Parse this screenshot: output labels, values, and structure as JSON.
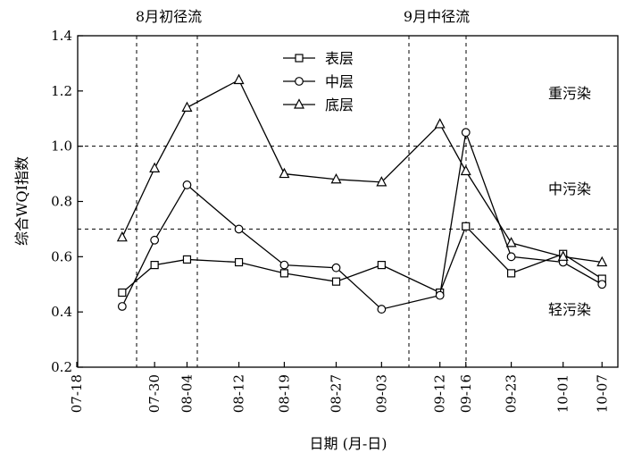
{
  "chart_data": {
    "type": "line",
    "xlabel": "日期 (月-日)",
    "ylabel": "综合WQI指数",
    "ylim": [
      0.2,
      1.4
    ],
    "yticks": [
      "0.2",
      "0.4",
      "0.6",
      "0.8",
      "1.0",
      "1.2",
      "1.4"
    ],
    "categories": [
      "07-18",
      "07-30",
      "08-04",
      "08-12",
      "08-19",
      "08-27",
      "09-03",
      "09-12",
      "09-16",
      "09-23",
      "10-01",
      "10-07"
    ],
    "points_x": [
      "07-25",
      "07-30",
      "08-04",
      "08-12",
      "08-19",
      "08-27",
      "09-03",
      "09-12",
      "09-16",
      "09-23",
      "10-01",
      "10-07"
    ],
    "series": [
      {
        "name": "表层",
        "marker": "square",
        "values": [
          0.47,
          0.57,
          0.59,
          0.58,
          0.54,
          0.51,
          0.57,
          0.47,
          0.71,
          0.54,
          0.61,
          0.52
        ]
      },
      {
        "name": "中层",
        "marker": "circle",
        "values": [
          0.42,
          0.66,
          0.86,
          0.7,
          0.57,
          0.56,
          0.41,
          0.46,
          1.05,
          0.6,
          0.58,
          0.5
        ]
      },
      {
        "name": "底层",
        "marker": "triangle",
        "values": [
          0.67,
          0.92,
          1.14,
          1.24,
          0.9,
          0.88,
          0.87,
          1.08,
          0.91,
          0.65,
          0.6,
          0.58
        ]
      }
    ],
    "reference_lines": [
      1.0,
      0.7
    ],
    "runoff_periods": [
      {
        "label": "8月初径流"
      },
      {
        "label": "9月中径流"
      }
    ],
    "pollution_levels": [
      "重污染",
      "中污染",
      "轻污染"
    ],
    "legend_position": "top-center",
    "grid": false
  }
}
